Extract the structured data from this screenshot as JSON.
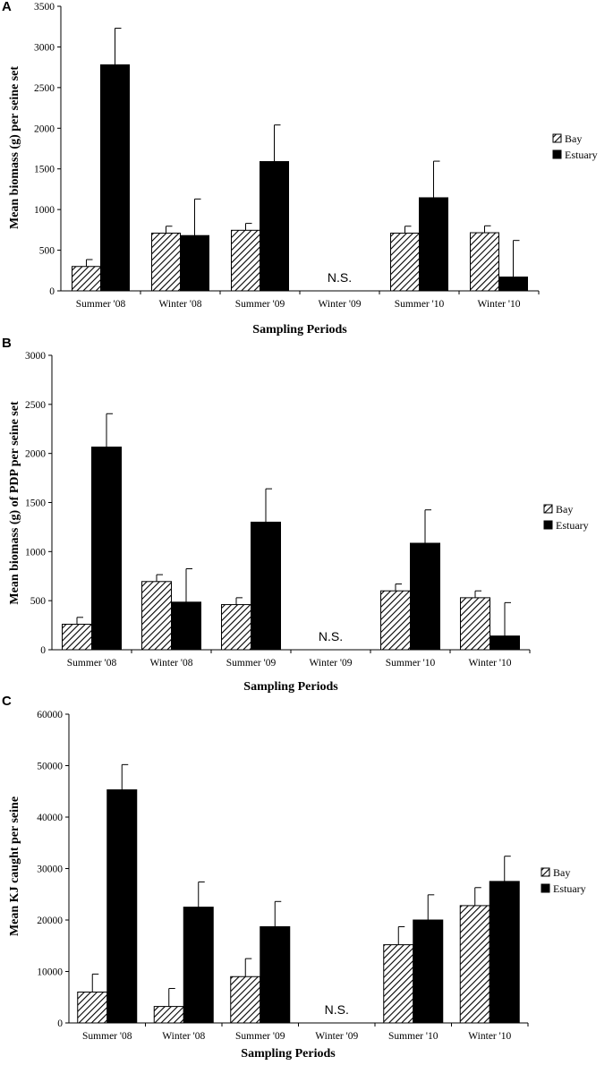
{
  "chart_data": [
    {
      "type": "bar",
      "panel_label": "A",
      "xlabel": "Sampling Periods",
      "ylabel": "Mean biomass (g) per seine set",
      "ylim": [
        0,
        3500
      ],
      "yticks": [
        0,
        500,
        1000,
        1500,
        2000,
        2500,
        3000,
        3500
      ],
      "categories": [
        "Summer '08",
        "Winter '08",
        "Summer '09",
        "Winter '09",
        "Summer '10",
        "Winter '10"
      ],
      "series": [
        {
          "name": "Bay",
          "pattern": "hatch",
          "values": [
            300,
            710,
            745,
            null,
            710,
            715
          ],
          "errors": [
            85,
            85,
            85,
            null,
            85,
            85
          ]
        },
        {
          "name": "Estuary",
          "pattern": "solid",
          "values": [
            2780,
            680,
            1590,
            null,
            1145,
            170
          ],
          "errors": [
            450,
            450,
            450,
            null,
            450,
            450
          ]
        }
      ],
      "annotations": [
        {
          "category": "Winter '09",
          "text": "N.S."
        }
      ],
      "legend": {
        "position": "right",
        "entries": [
          "Bay",
          "Estuary"
        ]
      }
    },
    {
      "type": "bar",
      "panel_label": "B",
      "xlabel": "Sampling Periods",
      "ylabel": "Mean biomass (g) of PDP per seine set",
      "ylim": [
        0,
        3000
      ],
      "yticks": [
        0,
        500,
        1000,
        1500,
        2000,
        2500,
        3000
      ],
      "categories": [
        "Summer '08",
        "Winter '08",
        "Summer '09",
        "Winter '09",
        "Summer '10",
        "Winter '10"
      ],
      "series": [
        {
          "name": "Bay",
          "pattern": "hatch",
          "values": [
            260,
            695,
            460,
            null,
            600,
            530
          ],
          "errors": [
            70,
            70,
            70,
            null,
            70,
            70
          ]
        },
        {
          "name": "Estuary",
          "pattern": "solid",
          "values": [
            2065,
            485,
            1300,
            null,
            1085,
            140
          ],
          "errors": [
            340,
            340,
            340,
            null,
            340,
            340
          ]
        }
      ],
      "annotations": [
        {
          "category": "Winter '09",
          "text": "N.S."
        }
      ],
      "legend": {
        "position": "right",
        "entries": [
          "Bay",
          "Estuary"
        ]
      }
    },
    {
      "type": "bar",
      "panel_label": "C",
      "xlabel": "Sampling Periods",
      "ylabel": "Mean KJ caught per seine",
      "ylim": [
        0,
        60000
      ],
      "yticks": [
        0,
        10000,
        20000,
        30000,
        40000,
        50000,
        60000
      ],
      "categories": [
        "Summer '08",
        "Winter '08",
        "Summer '09",
        "Winter '09",
        "Summer '10",
        "Winter '10"
      ],
      "series": [
        {
          "name": "Bay",
          "pattern": "hatch",
          "values": [
            6000,
            3200,
            9000,
            null,
            15200,
            22800
          ],
          "errors": [
            3500,
            3500,
            3500,
            null,
            3500,
            3500
          ]
        },
        {
          "name": "Estuary",
          "pattern": "solid",
          "values": [
            45300,
            22500,
            18700,
            null,
            20000,
            27500
          ],
          "errors": [
            4900,
            4900,
            4900,
            null,
            4900,
            4900
          ]
        }
      ],
      "annotations": [
        {
          "category": "Winter '09",
          "text": "N.S."
        }
      ],
      "legend": {
        "position": "right",
        "entries": [
          "Bay",
          "Estuary"
        ]
      }
    }
  ]
}
